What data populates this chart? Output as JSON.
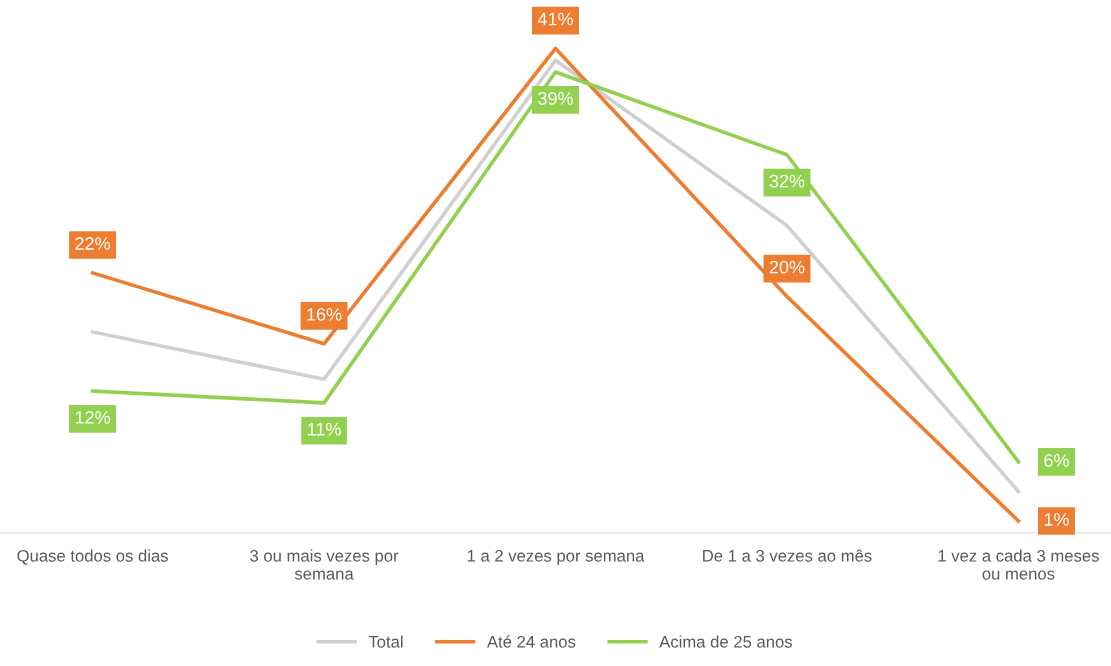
{
  "chart_data": {
    "type": "line",
    "categories": [
      "Quase todos os dias",
      "3 ou mais vezes por semana",
      "1 a 2 vezes por semana",
      "De 1 a 3 vezes ao mês",
      "1 vez a cada 3 meses ou menos"
    ],
    "series": [
      {
        "name": "Total",
        "color": "#d0d0d0",
        "values": [
          17,
          13,
          40,
          26,
          3.5
        ]
      },
      {
        "name": "Até 24 anos",
        "color": "#ed7d31",
        "values": [
          22,
          16,
          41,
          20,
          1
        ],
        "value_labels": [
          "22%",
          "16%",
          "41%",
          "20%",
          "1%"
        ]
      },
      {
        "name": "Acima de 25 anos",
        "color": "#92d050",
        "values": [
          12,
          11,
          39,
          32,
          6
        ],
        "value_labels": [
          "12%",
          "11%",
          "39%",
          "32%",
          "6%"
        ]
      }
    ],
    "grid": false,
    "legend": "bottom",
    "marker": "none",
    "line_style": "solid"
  }
}
